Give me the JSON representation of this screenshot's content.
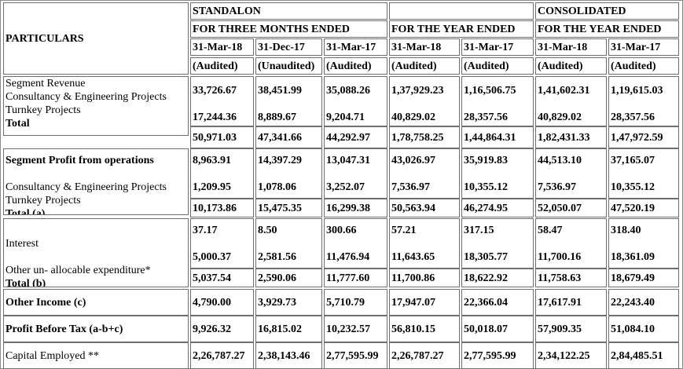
{
  "headers": {
    "particulars": "PARTICULARS",
    "standalone": "STANDALON",
    "standalone_period": "FOR THREE MONTHS ENDED",
    "year_period": "FOR THE YEAR ENDED",
    "consolidated": "CONSOLIDATED",
    "consolidated_period": "FOR THE YEAR ENDED",
    "dates": [
      "31-Mar-18",
      "31-Dec-17",
      "31-Mar-17",
      "31-Mar-18",
      "31-Mar-17",
      "31-Mar-18",
      "31-Mar-17"
    ],
    "audit": [
      "(Audited)",
      "(Unaudited)",
      "(Audited)",
      "(Audited)",
      "(Audited)",
      "(Audited)",
      "(Audited)"
    ]
  },
  "labels": {
    "segment_revenue": "Segment Revenue",
    "consultancy": "Consultancy & Engineering Projects",
    "turnkey": "Turnkey Projects",
    "total": "Total",
    "segment_profit": "Segment Profit from operations",
    "consultancy2": "Consultancy & Engineering Projects",
    "turnkey2": "Turnkey Projects",
    "total_a": "Total (a)",
    "interest": "Interest",
    "other_unallocable": "Other un- allocable expenditure*",
    "total_b": "Total (b)",
    "other_income": "Other Income (c)",
    "pbt": "Profit Before Tax (a-b+c)",
    "capital_employed": "Capital Employed **"
  },
  "values": {
    "revenue_consultancy": [
      "33,726.67",
      "38,451.99",
      "35,088.26",
      "1,37,929.23",
      "1,16,506.75",
      "1,41,602.31",
      "1,19,615.03"
    ],
    "revenue_turnkey": [
      "17,244.36",
      "8,889.67",
      "9,204.71",
      "40,829.02",
      "28,357.56",
      "40,829.02",
      "28,357.56"
    ],
    "revenue_total": [
      "50,971.03",
      "47,341.66",
      "44,292.97",
      "1,78,758.25",
      "1,44,864.31",
      "1,82,431.33",
      "1,47,972.59"
    ],
    "profit_consultancy": [
      "8,963.91",
      "14,397.29",
      "13,047.31",
      "43,026.97",
      "35,919.83",
      "44,513.10",
      "37,165.07"
    ],
    "profit_turnkey": [
      "1,209.95",
      "1,078.06",
      "3,252.07",
      "7,536.97",
      "10,355.12",
      "7,536.97",
      "10,355.12"
    ],
    "total_a": [
      "10,173.86",
      "15,475.35",
      "16,299.38",
      "50,563.94",
      "46,274.95",
      "52,050.07",
      "47,520.19"
    ],
    "interest": [
      "37.17",
      "8.50",
      "300.66",
      "57.21",
      "317.15",
      "58.47",
      "318.40"
    ],
    "other_unallocable": [
      "5,000.37",
      "2,581.56",
      "11,476.94",
      "11,643.65",
      "18,305.77",
      "11,700.16",
      "18,361.09"
    ],
    "total_b": [
      "5,037.54",
      "2,590.06",
      "11,777.60",
      "11,700.86",
      "18,622.92",
      "11,758.63",
      "18,679.49"
    ],
    "other_income": [
      "4,790.00",
      "3,929.73",
      "5,710.79",
      "17,947.07",
      "22,366.04",
      "17,617.91",
      "22,243.40"
    ],
    "pbt": [
      "9,926.32",
      "16,815.02",
      "10,232.57",
      "56,810.15",
      "50,018.07",
      "57,909.35",
      "51,084.10"
    ],
    "capital_employed": [
      "2,26,787.27",
      "2,38,143.46",
      "2,77,595.99",
      "2,26,787.27",
      "2,77,595.99",
      "2,34,122.25",
      "2,84,485.51"
    ]
  }
}
